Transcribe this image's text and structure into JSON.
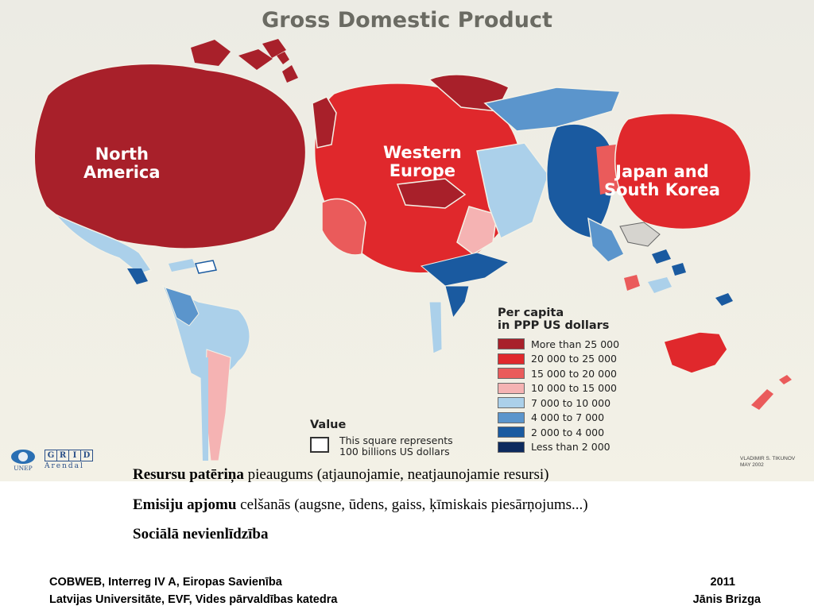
{
  "map": {
    "title": "Gross Domestic Product",
    "regions": [
      {
        "label": "North\nAmerica",
        "category": "More than 25 000"
      },
      {
        "label": "Western\nEurope",
        "category": "20 000 to 25 000"
      },
      {
        "label": "Japan and\nSouth Korea",
        "category": "20 000 to 25 000"
      }
    ],
    "legend": {
      "title": "Per capita\nin PPP US dollars",
      "items": [
        {
          "label": "More than 25 000",
          "color": "#a8202a"
        },
        {
          "label": "20 000 to 25 000",
          "color": "#e0282c"
        },
        {
          "label": "15 000 to 20 000",
          "color": "#ea5b5b"
        },
        {
          "label": "10 000 to 15 000",
          "color": "#f5b3b3"
        },
        {
          "label": "7 000 to 10 000",
          "color": "#abd0ea"
        },
        {
          "label": "4 000 to 7 000",
          "color": "#5b95cc"
        },
        {
          "label": "2 000 to 4 000",
          "color": "#1a5aa0"
        },
        {
          "label": "Less than 2 000",
          "color": "#0d2a5e"
        }
      ]
    },
    "value_key": {
      "title": "Value",
      "note": "This square represents\n100 billions US dollars"
    },
    "credit": "VLADIMIR S. TIKUNOV\nMAY 2002",
    "logos": {
      "unep": "UNEP",
      "grid_letters": [
        "G",
        "R",
        "I",
        "D"
      ],
      "grid_sub": "Arendal"
    }
  },
  "bullets": [
    {
      "bold": "Resursu patēriņa",
      "rest": " pieaugums (atjaunojamie, neatjaunojamie resursi)"
    },
    {
      "bold": "Emisiju apjomu",
      "rest": " celšanās (augsne, ūdens, gaiss, ķīmiskais piesārņojums...)"
    },
    {
      "bold": "Sociālā nevienlīdzība",
      "rest": ""
    }
  ],
  "footer": {
    "left_line1": "COBWEB, Interreg IV A, Eiropas Savienība",
    "left_line2": "Latvijas Universitāte, EVF, Vides pārvaldības katedra",
    "right_line1": "2011",
    "right_line2": "Jānis Brizga"
  }
}
